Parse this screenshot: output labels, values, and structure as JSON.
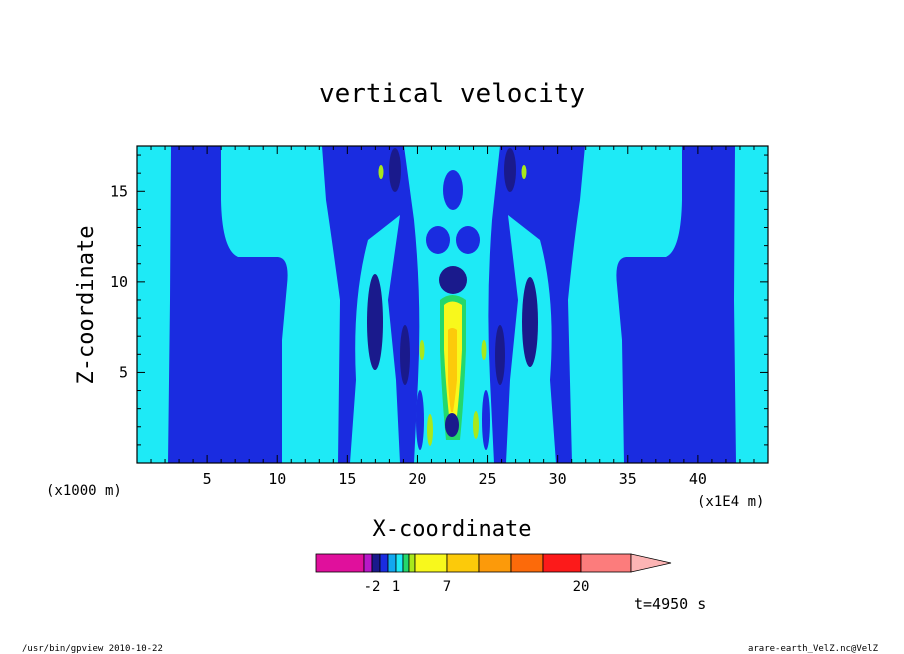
{
  "chart_data": {
    "type": "contour",
    "title": "vertical velocity",
    "xlabel": "X-coordinate",
    "ylabel": "Z-coordinate",
    "x_unit_left": "(x1000 m)",
    "x_unit_right": "(x1E4 m)",
    "xlim": [
      0,
      45
    ],
    "ylim": [
      0,
      17.5
    ],
    "x_ticks": [
      5,
      10,
      15,
      20,
      25,
      30,
      35,
      40
    ],
    "y_ticks": [
      5,
      10,
      15
    ],
    "time_label": "t=4950 s",
    "colorbar": {
      "colors": [
        "#e0109c",
        "#b818c8",
        "#1a1a8c",
        "#1a2ce0",
        "#12a8f0",
        "#1eeaf6",
        "#24d86c",
        "#a8e81c",
        "#f8f81c",
        "#fcca0a",
        "#fc9a0a",
        "#fc6a0a",
        "#fc1a1a",
        "#fc7c7c"
      ],
      "tip_color": "#fcb4b4",
      "tick_labels": [
        "-2",
        "1",
        "7",
        "20"
      ]
    }
  },
  "footer": {
    "left": "/usr/bin/gpview   2010-10-22",
    "right": "arare-earth_VelZ.nc@VelZ"
  }
}
